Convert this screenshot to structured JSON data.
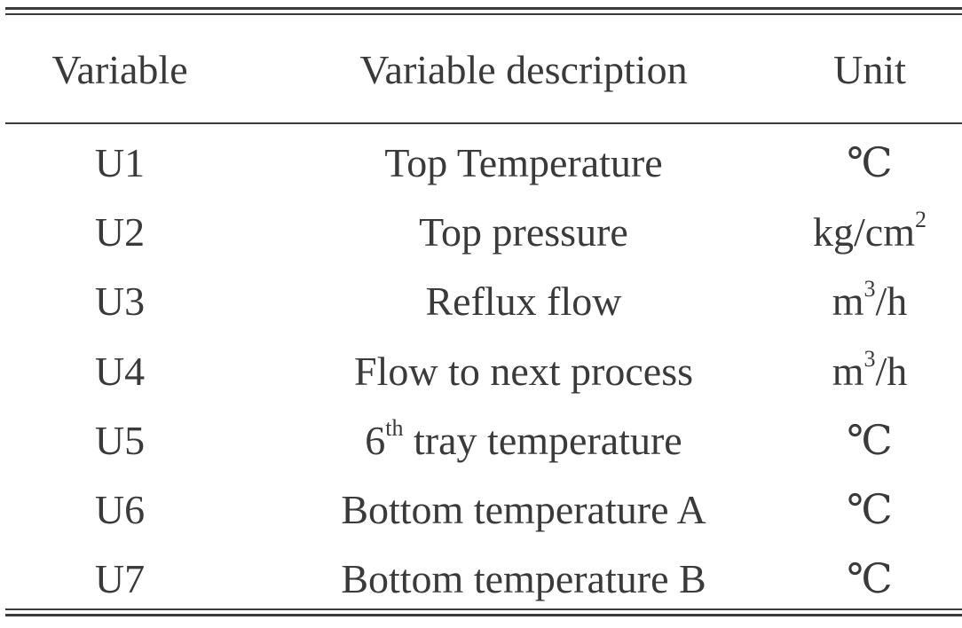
{
  "table": {
    "headers": {
      "variable": "Variable",
      "description": "Variable description",
      "unit": "Unit"
    },
    "rows": [
      {
        "variable": "U1",
        "description": "Top Temperature",
        "unit": "℃",
        "unit_sup": "",
        "unit_tail": "",
        "desc_pre": "",
        "desc_sup": ""
      },
      {
        "variable": "U2",
        "description": "Top pressure",
        "unit": "kg/cm",
        "unit_sup": "2",
        "unit_tail": "",
        "desc_pre": "",
        "desc_sup": ""
      },
      {
        "variable": "U3",
        "description": "Reflux flow",
        "unit": "m",
        "unit_sup": "3",
        "unit_tail": "/h",
        "desc_pre": "",
        "desc_sup": ""
      },
      {
        "variable": "U4",
        "description": "Flow to next process",
        "unit": "m",
        "unit_sup": "3",
        "unit_tail": "/h",
        "desc_pre": "",
        "desc_sup": ""
      },
      {
        "variable": "U5",
        "description": " tray temperature",
        "unit": "℃",
        "unit_sup": "",
        "unit_tail": "",
        "desc_pre": "6",
        "desc_sup": "th"
      },
      {
        "variable": "U6",
        "description": "Bottom temperature A",
        "unit": "℃",
        "unit_sup": "",
        "unit_tail": "",
        "desc_pre": "",
        "desc_sup": ""
      },
      {
        "variable": "U7",
        "description": "Bottom temperature B",
        "unit": "℃",
        "unit_sup": "",
        "unit_tail": "",
        "desc_pre": "",
        "desc_sup": ""
      }
    ]
  }
}
